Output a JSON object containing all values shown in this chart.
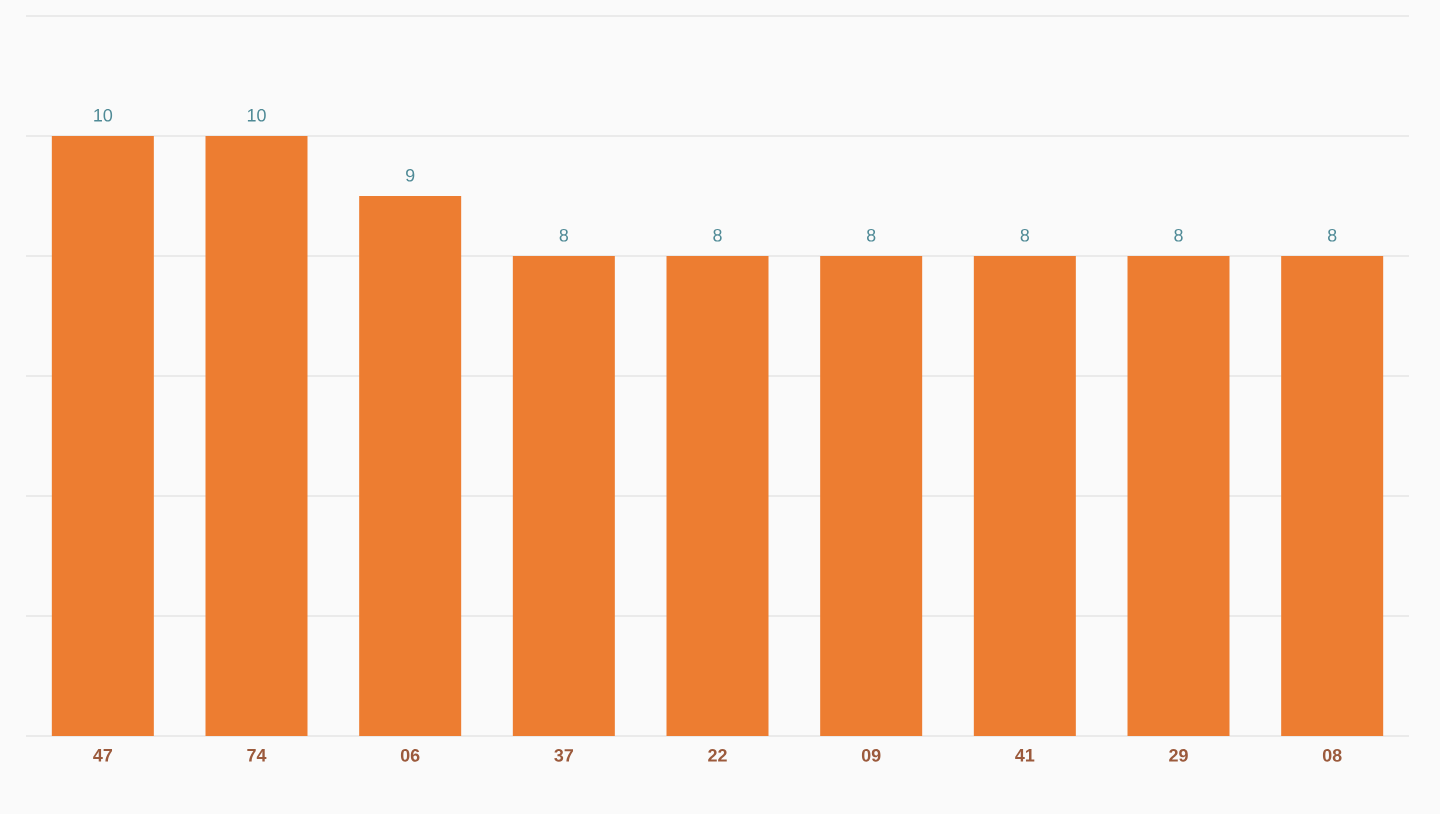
{
  "chart_data": {
    "type": "bar",
    "categories": [
      "47",
      "74",
      "06",
      "37",
      "22",
      "09",
      "41",
      "29",
      "08"
    ],
    "values": [
      10,
      10,
      9,
      8,
      8,
      8,
      8,
      8,
      8
    ],
    "color": "#ed7d31",
    "ylim": [
      0,
      12
    ],
    "yticks": [
      {
        "value": 0,
        "label": null
      },
      {
        "value": 2,
        "label": null
      },
      {
        "value": 4,
        "label": null
      },
      {
        "value": 6,
        "label": null
      },
      {
        "value": 8,
        "label": null
      },
      {
        "value": 10,
        "label": null
      },
      {
        "value": 12,
        "label": null
      }
    ],
    "tick_labels": "x",
    "grid": "y",
    "data_labels": true
  }
}
